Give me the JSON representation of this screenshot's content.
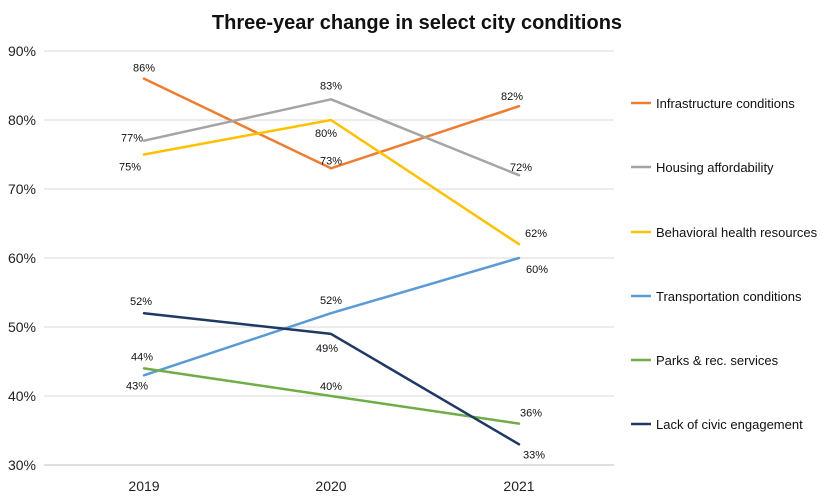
{
  "chart_data": {
    "type": "line",
    "title": "Three-year change in select city conditions",
    "categories": [
      "2019",
      "2020",
      "2021"
    ],
    "y_ticks": [
      "30%",
      "40%",
      "50%",
      "60%",
      "70%",
      "80%",
      "90%"
    ],
    "ylim": [
      30,
      90
    ],
    "grid": "horizontal",
    "legend_position": "right",
    "series": [
      {
        "name": "Infrastructure conditions",
        "color": "#ED7D31",
        "values": [
          86,
          73,
          82
        ],
        "labels": [
          "86%",
          "73%",
          "82%"
        ]
      },
      {
        "name": "Housing affordability",
        "color": "#A5A5A5",
        "values": [
          77,
          83,
          72
        ],
        "labels": [
          "77%",
          "83%",
          "72%"
        ]
      },
      {
        "name": "Behavioral health resources",
        "color": "#FFC000",
        "values": [
          75,
          80,
          62
        ],
        "labels": [
          "75%",
          "80%",
          "62%"
        ]
      },
      {
        "name": "Transportation conditions",
        "color": "#5B9BD5",
        "values": [
          43,
          52,
          60
        ],
        "labels": [
          "43%",
          "52%",
          "60%"
        ]
      },
      {
        "name": "Parks & rec. services",
        "color": "#70AD47",
        "values": [
          44,
          40,
          36
        ],
        "labels": [
          "44%",
          "40%",
          "36%"
        ]
      },
      {
        "name": "Lack of civic engagement",
        "color": "#1F3864",
        "values": [
          52,
          49,
          33
        ],
        "labels": [
          "52%",
          "49%",
          "33%"
        ]
      }
    ]
  }
}
